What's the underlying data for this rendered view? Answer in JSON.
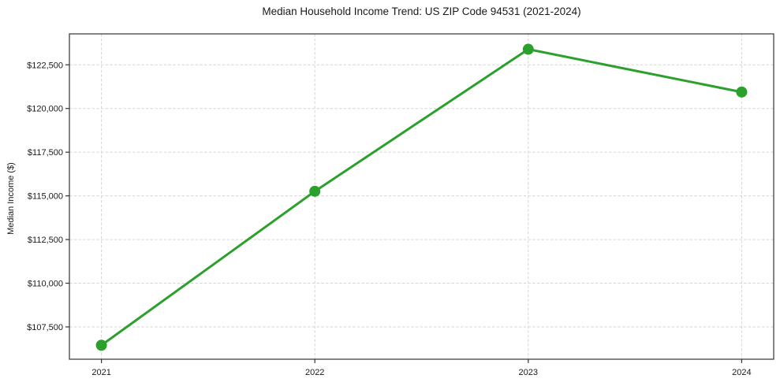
{
  "chart_data": {
    "type": "line",
    "title": "Median Household Income Trend: US ZIP Code 94531 (2021-2024)",
    "xlabel": "",
    "ylabel": "Median Income ($)",
    "x": [
      2021,
      2022,
      2023,
      2024
    ],
    "xtick_labels": [
      "2021",
      "2022",
      "2023",
      "2024"
    ],
    "series": [
      {
        "name": "Median Household Income",
        "values": [
          106450,
          115260,
          123390,
          120940
        ]
      }
    ],
    "yticks": [
      107500,
      110000,
      112500,
      115000,
      117500,
      120000,
      122500
    ],
    "ytick_labels": [
      "$107,500",
      "$110,000",
      "$112,500",
      "$115,000",
      "$117,500",
      "$120,000",
      "$122,500"
    ],
    "xlim": [
      2020.85,
      2024.15
    ],
    "ylim": [
      105650,
      124270
    ],
    "grid": true,
    "grid_style": "dashed",
    "legend": "none",
    "colors": {
      "line": "#2ca02c",
      "marker": "#2ca02c",
      "grid": "#d6d6d6",
      "spine": "#333333",
      "tick_text": "#1a1a1a",
      "background": "#ffffff"
    }
  }
}
